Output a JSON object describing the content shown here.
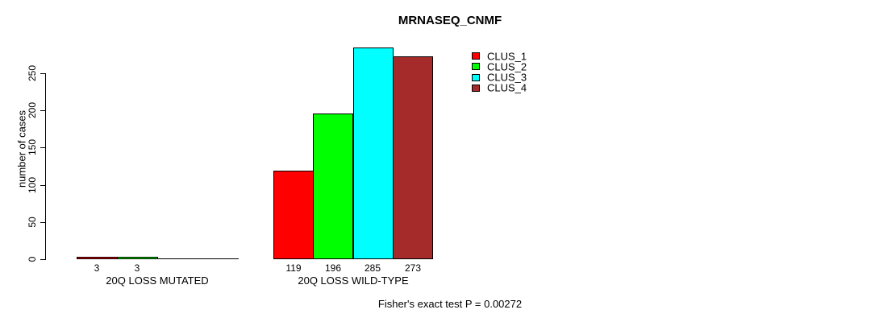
{
  "chart_data": {
    "type": "bar",
    "title": "MRNASEQ_CNMF",
    "ylabel": "number of cases",
    "annotation": "Fisher's exact test P = 0.00272",
    "categories": [
      "20Q LOSS MUTATED",
      "20Q LOSS WILD-TYPE"
    ],
    "series": [
      {
        "name": "CLUS_1",
        "color": "#FF0000",
        "values": [
          3,
          119
        ]
      },
      {
        "name": "CLUS_2",
        "color": "#00FF00",
        "values": [
          3,
          196
        ]
      },
      {
        "name": "CLUS_3",
        "color": "#00FFFF",
        "values": [
          0,
          285
        ]
      },
      {
        "name": "CLUS_4",
        "color": "#A52A2A",
        "values": [
          0,
          273
        ]
      }
    ],
    "show_zero_labels": false,
    "yticks": [
      0,
      50,
      100,
      150,
      200,
      250
    ],
    "ylim": [
      0,
      290
    ],
    "grid": false,
    "legend_position": "top-right",
    "legend_entries": [
      "CLUS_1",
      "CLUS_2",
      "CLUS_3",
      "CLUS_4"
    ]
  }
}
